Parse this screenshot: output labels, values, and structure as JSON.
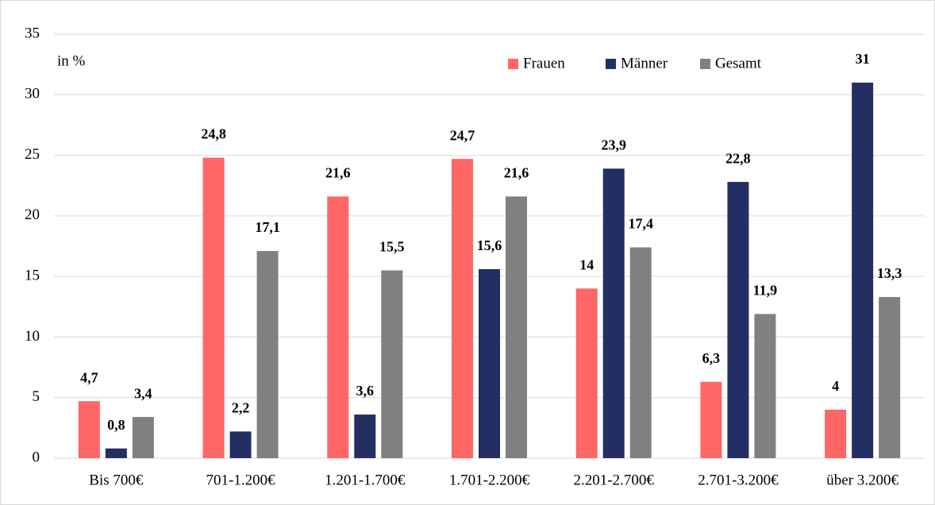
{
  "chart_data": {
    "type": "bar",
    "annotation": "in %",
    "categories": [
      "Bis 700€",
      "701-1.200€",
      "1.201-1.700€",
      "1.701-2.200€",
      "2.201-2.700€",
      "2.701-3.200€",
      "über 3.200€"
    ],
    "series": [
      {
        "name": "Frauen",
        "color": "#ff6666",
        "values": [
          4.7,
          24.8,
          21.6,
          24.7,
          14,
          6.3,
          4
        ],
        "value_labels": [
          "4,7",
          "24,8",
          "21,6",
          "24,7",
          "14",
          "6,3",
          "4"
        ]
      },
      {
        "name": "Männer",
        "color": "#232f63",
        "values": [
          0.8,
          2.2,
          3.6,
          15.6,
          23.9,
          22.8,
          31
        ],
        "value_labels": [
          "0,8",
          "2,2",
          "3,6",
          "15,6",
          "23,9",
          "22,8",
          "31"
        ]
      },
      {
        "name": "Gesamt",
        "color": "#808080",
        "values": [
          3.4,
          17.1,
          15.5,
          21.6,
          17.4,
          11.9,
          13.3
        ],
        "value_labels": [
          "3,4",
          "17,1",
          "15,5",
          "21,6",
          "17,4",
          "11,9",
          "13,3"
        ]
      }
    ],
    "ylim": [
      0,
      35
    ],
    "yticks": [
      0,
      5,
      10,
      15,
      20,
      25,
      30,
      35
    ],
    "grid": true,
    "legend": "top-right"
  }
}
